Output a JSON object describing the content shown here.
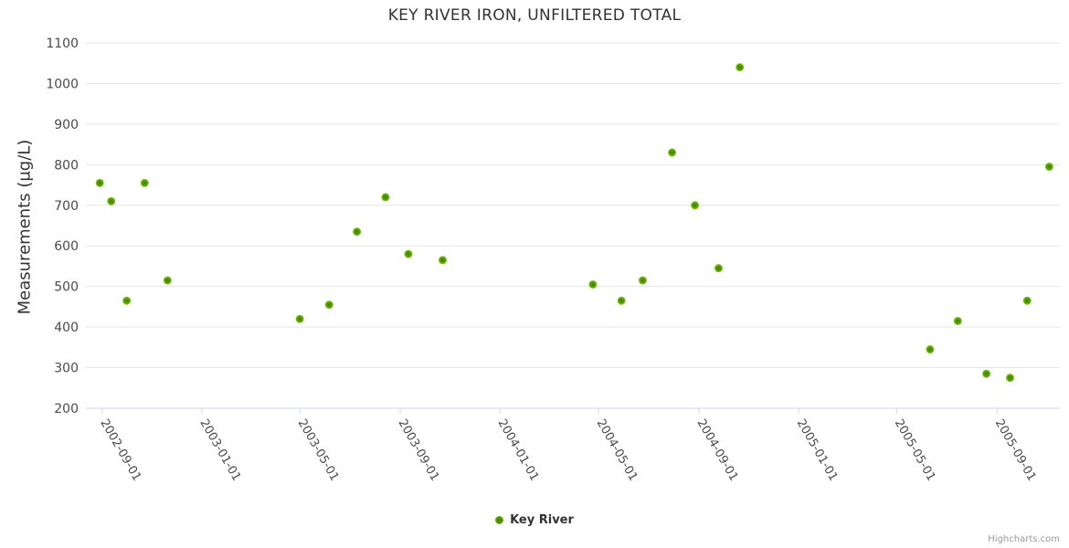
{
  "chart": {
    "title": "KEY RIVER IRON, UNFILTERED TOTAL",
    "y_axis_title": "Measurements (µg/L)",
    "legend": {
      "items": [
        "Key River"
      ]
    },
    "credits": "Highcharts.com"
  },
  "colors": {
    "point_outer": "#72bd0c",
    "point_mid": "#55980a",
    "point_inner": "#3e7c04",
    "grid_line": "#e6e6e6",
    "axis_line": "#ccd6eb",
    "title_text": "#333333",
    "axis_label_text": "#4a4a4a",
    "credits_text": "#999999"
  },
  "chart_data": {
    "type": "scatter",
    "title": "KEY RIVER IRON, UNFILTERED TOTAL",
    "xlabel": "",
    "ylabel": "Measurements (µg/L)",
    "ylim": [
      200,
      1100
    ],
    "y_tick_step": 100,
    "y_ticks": [
      200,
      300,
      400,
      500,
      600,
      700,
      800,
      900,
      1000,
      1100
    ],
    "x_range": [
      "2002-08-12",
      "2005-11-17"
    ],
    "x_ticks": [
      "2002-09-01",
      "2003-01-01",
      "2003-05-01",
      "2003-09-01",
      "2004-01-01",
      "2004-05-01",
      "2004-09-01",
      "2005-01-01",
      "2005-05-01",
      "2005-09-01"
    ],
    "grid": "horizontal-only",
    "legend_position": "bottom-center",
    "series": [
      {
        "name": "Key River",
        "points": [
          [
            "2002-08-29",
            755
          ],
          [
            "2002-09-12",
            710
          ],
          [
            "2002-10-01",
            465
          ],
          [
            "2002-10-23",
            755
          ],
          [
            "2002-11-20",
            515
          ],
          [
            "2003-05-01",
            420
          ],
          [
            "2003-06-06",
            455
          ],
          [
            "2003-07-10",
            635
          ],
          [
            "2003-08-14",
            720
          ],
          [
            "2003-09-11",
            580
          ],
          [
            "2003-10-23",
            565
          ],
          [
            "2004-04-24",
            505
          ],
          [
            "2004-05-29",
            465
          ],
          [
            "2004-06-24",
            515
          ],
          [
            "2004-07-30",
            830
          ],
          [
            "2004-08-27",
            700
          ],
          [
            "2004-09-25",
            545
          ],
          [
            "2004-10-21",
            1040
          ],
          [
            "2005-06-11",
            345
          ],
          [
            "2005-07-15",
            415
          ],
          [
            "2005-08-19",
            285
          ],
          [
            "2005-09-17",
            275
          ],
          [
            "2005-10-08",
            465
          ],
          [
            "2005-11-04",
            795
          ]
        ]
      }
    ]
  }
}
